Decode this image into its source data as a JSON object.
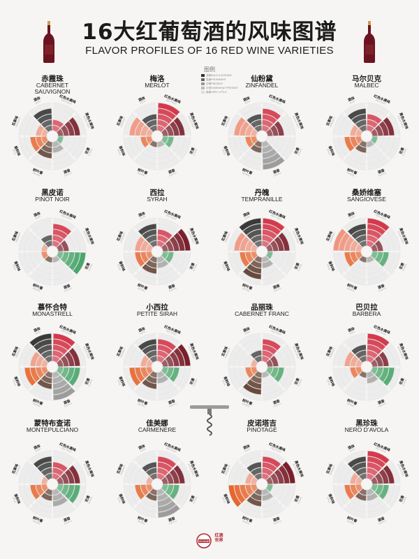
{
  "page": {
    "title": "16大红葡萄酒的风味图谱",
    "subtitle": "FLAVOR PROFILES OF 16 RED WINE VARIETIES"
  },
  "legend": {
    "title": "图例",
    "levels": [
      {
        "label": "浓郁BOLD & INTENSE",
        "color": "#333333"
      },
      {
        "label": "显著PROMINENT",
        "color": "#666666"
      },
      {
        "label": "中等PRESENT",
        "color": "#999999"
      },
      {
        "label": "中低SOMEWHAT PRESENT",
        "color": "#bbbbbb"
      },
      {
        "label": "微弱VERY LITTLE",
        "color": "#dddddd"
      }
    ]
  },
  "categories": [
    {
      "cn": "红色水果味",
      "en": "RED FRUIT",
      "color": "#d43a4c",
      "color_light": "#f2bcc3"
    },
    {
      "cn": "黑色水果味",
      "en": "BLACK FRUIT",
      "color": "#7a1f2b",
      "color_light": "#d6b3b7"
    },
    {
      "cn": "花香",
      "en": "FLORAL",
      "color": "#4aa66b",
      "color_light": "#c3e4cd"
    },
    {
      "cn": "酒香",
      "en": "EARTHY",
      "color": "#9c9c9c",
      "color_light": "#dcdcdc"
    },
    {
      "cn": "树叶香",
      "en": "HERBAL",
      "color": "#5b3a2c",
      "color_light": "#d4c5bd"
    },
    {
      "cn": "香料味",
      "en": "SPICE",
      "color": "#e7652f",
      "color_light": "#f7ccb7"
    },
    {
      "cn": "花果味",
      "en": "INHERENT",
      "color": "#f0947e",
      "color_light": "#f9d6cb"
    },
    {
      "cn": "酒体",
      "en": "BODY",
      "color": "#3a3a3a",
      "color_light": "#cfcfcf"
    }
  ],
  "chart_data": [
    {
      "type": "radial-bar",
      "name_cn": "赤霞珠",
      "name_en": "CABERNET SAUVIGNON",
      "scale_max": 5,
      "values": [
        2,
        4,
        1,
        2,
        3,
        3,
        2,
        4
      ]
    },
    {
      "type": "radial-bar",
      "name_cn": "梅洛",
      "name_en": "MERLOT",
      "scale_max": 5,
      "values": [
        5,
        4,
        2,
        1,
        1,
        2,
        4,
        3
      ]
    },
    {
      "type": "radial-bar",
      "name_cn": "仙粉黛",
      "name_en": "ZINFANDEL",
      "scale_max": 5,
      "values": [
        4,
        3,
        0,
        5,
        2,
        2,
        4,
        3
      ]
    },
    {
      "type": "radial-bar",
      "name_cn": "马尔贝克",
      "name_en": "MALBEC",
      "scale_max": 5,
      "values": [
        3,
        4,
        1,
        1,
        2,
        3,
        2,
        4
      ]
    },
    {
      "type": "radial-bar",
      "name_cn": "黑皮诺",
      "name_en": "PINOT NOIR",
      "scale_max": 5,
      "values": [
        4,
        2,
        5,
        1,
        1,
        1,
        1,
        2
      ]
    },
    {
      "type": "radial-bar",
      "name_cn": "西拉",
      "name_en": "SYRAH",
      "scale_max": 5,
      "values": [
        3,
        5,
        2,
        2,
        3,
        3,
        3,
        4
      ]
    },
    {
      "type": "radial-bar",
      "name_cn": "丹魄",
      "name_en": "TEMPRANILLE",
      "scale_max": 5,
      "values": [
        5,
        4,
        1,
        2,
        4,
        3,
        4,
        5
      ]
    },
    {
      "type": "radial-bar",
      "name_cn": "桑娇维塞",
      "name_en": "SANGIOVESE",
      "scale_max": 5,
      "values": [
        5,
        2,
        3,
        1,
        1,
        3,
        5,
        4
      ]
    },
    {
      "type": "radial-bar",
      "name_cn": "慕怀合特",
      "name_en": "MONASTRELL",
      "scale_max": 5,
      "values": [
        5,
        4,
        4,
        5,
        3,
        4,
        3,
        5
      ]
    },
    {
      "type": "radial-bar",
      "name_cn": "小西拉",
      "name_en": "PETITE SIRAH",
      "scale_max": 5,
      "values": [
        4,
        5,
        3,
        2,
        3,
        4,
        2,
        4
      ]
    },
    {
      "type": "radial-bar",
      "name_cn": "品丽珠",
      "name_en": "CABERNET FRANC",
      "scale_max": 5,
      "values": [
        4,
        2,
        3,
        1,
        4,
        2,
        1,
        2
      ]
    },
    {
      "type": "radial-bar",
      "name_cn": "巴贝拉",
      "name_en": "BARBERA",
      "scale_max": 5,
      "values": [
        5,
        3,
        4,
        2,
        1,
        2,
        3,
        3
      ]
    },
    {
      "type": "radial-bar",
      "name_cn": "蒙特布查诺",
      "name_en": "MONTEPULCIANO",
      "scale_max": 5,
      "values": [
        3,
        4,
        4,
        3,
        2,
        3,
        1,
        4
      ]
    },
    {
      "type": "radial-bar",
      "name_cn": "佳美娜",
      "name_en": "CARMENERE",
      "scale_max": 5,
      "values": [
        4,
        4,
        3,
        5,
        2,
        3,
        1,
        3
      ]
    },
    {
      "type": "radial-bar",
      "name_cn": "皮诺塔吉",
      "name_en": "PINOTAGE",
      "scale_max": 5,
      "values": [
        4,
        5,
        1,
        2,
        3,
        5,
        2,
        3
      ]
    },
    {
      "type": "radial-bar",
      "name_cn": "黑珍珠",
      "name_en": "NERO D’AVOLA",
      "scale_max": 5,
      "values": [
        5,
        4,
        3,
        2,
        2,
        3,
        2,
        4
      ]
    }
  ],
  "logo": {
    "badge": "VOYAGE",
    "text": "红酒世界"
  },
  "colors": {
    "bottle": "#6b1420",
    "bottle_cap": "#c8a24a",
    "ring": "#dadada"
  }
}
